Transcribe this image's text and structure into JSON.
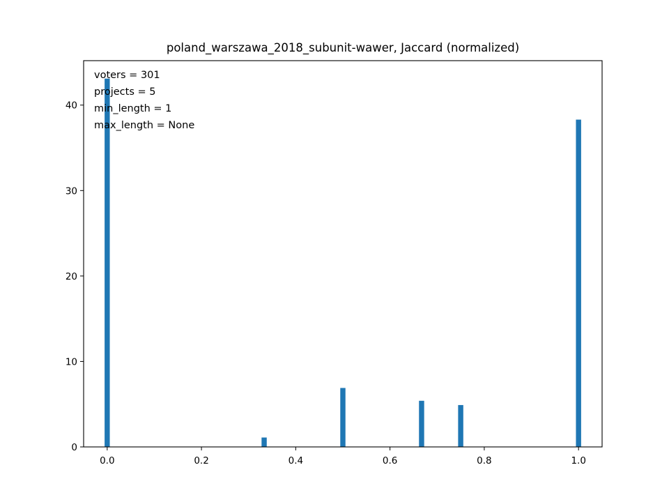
{
  "chart_data": {
    "type": "bar",
    "title": "poland_warszawa_2018_subunit-wawer, Jaccard (normalized)",
    "xlabel": "",
    "ylabel": "",
    "xlim": [
      -0.05,
      1.05
    ],
    "ylim": [
      0,
      45.2
    ],
    "grid": false,
    "bar_width": 0.011,
    "color": "#1f77b4",
    "x_ticks": [
      0.0,
      0.2,
      0.4,
      0.6,
      0.8,
      1.0
    ],
    "x_tick_labels": [
      "0.0",
      "0.2",
      "0.4",
      "0.6",
      "0.8",
      "1.0"
    ],
    "y_ticks": [
      0,
      10,
      20,
      30,
      40
    ],
    "y_tick_labels": [
      "0",
      "10",
      "20",
      "30",
      "40"
    ],
    "bars": [
      {
        "x": 0.0,
        "value": 43.1
      },
      {
        "x": 0.333,
        "value": 1.1
      },
      {
        "x": 0.5,
        "value": 6.9
      },
      {
        "x": 0.667,
        "value": 5.4
      },
      {
        "x": 0.75,
        "value": 4.9
      },
      {
        "x": 1.0,
        "value": 38.3
      }
    ],
    "annotations": [
      "voters = 301",
      "projects = 5",
      "min_length = 1",
      "max_length = None"
    ]
  }
}
